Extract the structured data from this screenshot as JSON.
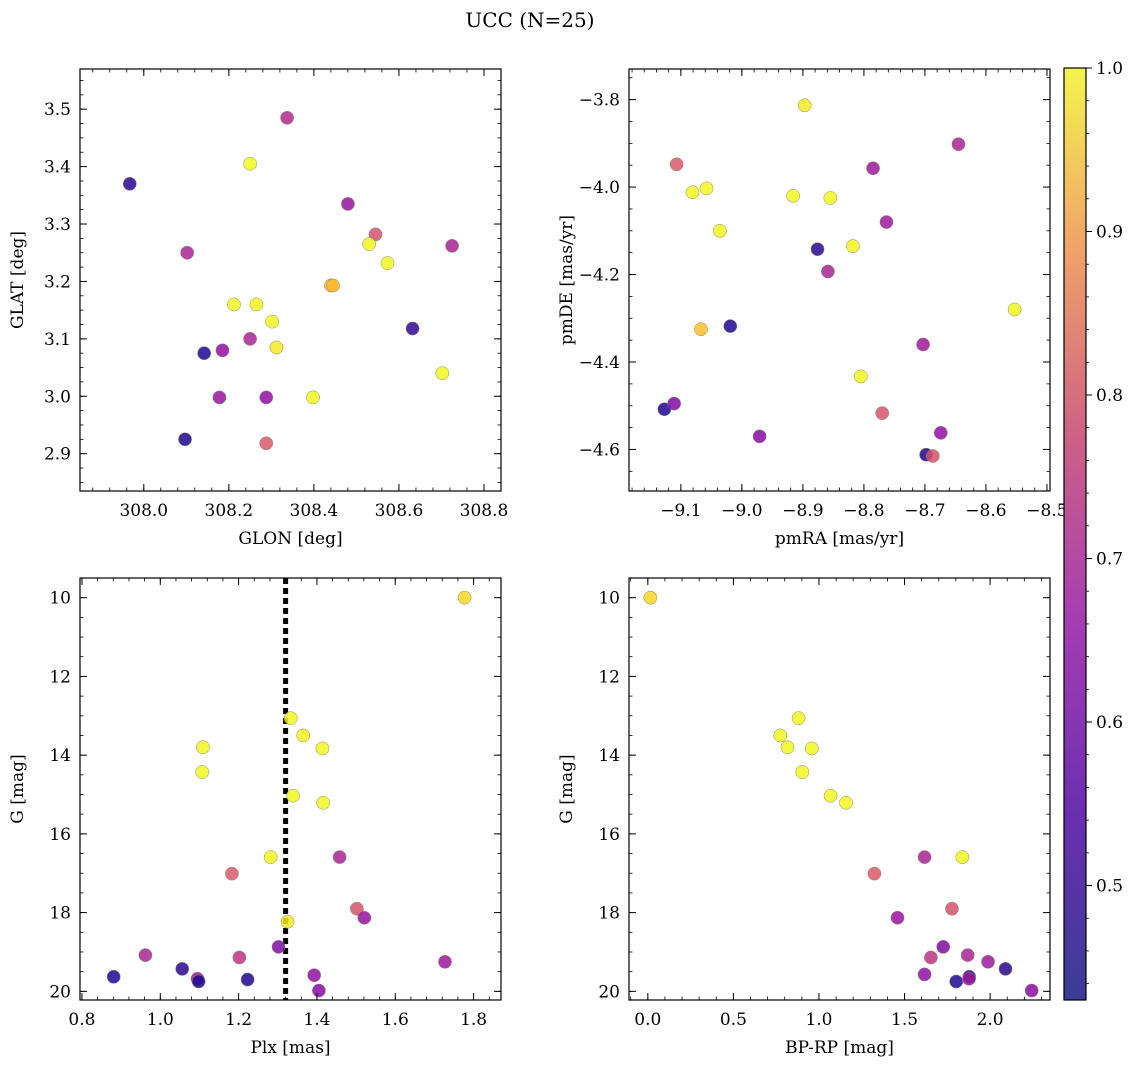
{
  "figure": {
    "title": "UCC (N=25)",
    "colorbar": {
      "min": 0.43,
      "max": 1.0,
      "ticks": [
        "0.5",
        "0.6",
        "0.7",
        "0.8",
        "0.9",
        "1.0"
      ],
      "colormap": "plasma"
    }
  },
  "chart_data": [
    {
      "type": "scatter",
      "xlabel": "GLON [deg]",
      "ylabel": "GLAT [deg]",
      "xlim": [
        307.85,
        308.84
      ],
      "ylim": [
        2.835,
        3.57
      ],
      "xticks": [
        308.0,
        308.2,
        308.4,
        308.6,
        308.8
      ],
      "xtick_labels": [
        "308.0",
        "308.2",
        "308.4",
        "308.6",
        "308.8"
      ],
      "yticks": [
        2.9,
        3.0,
        3.1,
        3.2,
        3.3,
        3.4,
        3.5
      ],
      "ytick_labels": [
        "2.9",
        "3.0",
        "3.1",
        "3.2",
        "3.3",
        "3.4",
        "3.5"
      ],
      "points": [
        {
          "x": 307.967,
          "y": 3.37,
          "c": 0.46
        },
        {
          "x": 308.102,
          "y": 3.25,
          "c": 0.62
        },
        {
          "x": 308.25,
          "y": 3.405,
          "c": 1.0
        },
        {
          "x": 308.337,
          "y": 3.485,
          "c": 0.63
        },
        {
          "x": 308.48,
          "y": 3.335,
          "c": 0.59
        },
        {
          "x": 308.545,
          "y": 3.282,
          "c": 0.7
        },
        {
          "x": 308.53,
          "y": 3.265,
          "c": 0.98
        },
        {
          "x": 308.573,
          "y": 3.232,
          "c": 0.99
        },
        {
          "x": 308.725,
          "y": 3.262,
          "c": 0.62
        },
        {
          "x": 308.44,
          "y": 3.193,
          "c": 0.86
        },
        {
          "x": 308.445,
          "y": 3.193,
          "c": 0.85
        },
        {
          "x": 308.212,
          "y": 3.16,
          "c": 0.99
        },
        {
          "x": 308.265,
          "y": 3.16,
          "c": 0.99
        },
        {
          "x": 308.302,
          "y": 3.13,
          "c": 0.99
        },
        {
          "x": 308.25,
          "y": 3.1,
          "c": 0.62
        },
        {
          "x": 308.312,
          "y": 3.085,
          "c": 0.93
        },
        {
          "x": 308.185,
          "y": 3.08,
          "c": 0.58
        },
        {
          "x": 308.142,
          "y": 3.075,
          "c": 0.45
        },
        {
          "x": 308.632,
          "y": 3.118,
          "c": 0.47
        },
        {
          "x": 308.178,
          "y": 2.998,
          "c": 0.59
        },
        {
          "x": 308.288,
          "y": 2.998,
          "c": 0.58
        },
        {
          "x": 308.398,
          "y": 2.998,
          "c": 0.99
        },
        {
          "x": 308.702,
          "y": 3.04,
          "c": 0.99
        },
        {
          "x": 308.097,
          "y": 2.925,
          "c": 0.45
        },
        {
          "x": 308.288,
          "y": 2.918,
          "c": 0.71
        }
      ]
    },
    {
      "type": "scatter",
      "xlabel": "pmRA [mas/yr]",
      "ylabel": "pmDE [mas/yr]",
      "xlim": [
        -9.185,
        -8.495
      ],
      "ylim": [
        -4.695,
        -3.73
      ],
      "xticks": [
        -9.1,
        -9.0,
        -8.9,
        -8.8,
        -8.7,
        -8.6,
        -8.5
      ],
      "xtick_labels": [
        "−9.1",
        "−9.0",
        "−8.9",
        "−8.8",
        "−8.7",
        "−8.6",
        "−8.5"
      ],
      "yticks": [
        -4.6,
        -4.4,
        -4.2,
        -4.0,
        -3.8
      ],
      "ytick_labels": [
        "−4.6",
        "−4.4",
        "−4.2",
        "−4.0",
        "−3.8"
      ],
      "points": [
        {
          "x": -8.897,
          "y": -3.813,
          "c": 0.93
        },
        {
          "x": -9.107,
          "y": -3.948,
          "c": 0.71
        },
        {
          "x": -9.081,
          "y": -4.012,
          "c": 0.99
        },
        {
          "x": -9.058,
          "y": -4.003,
          "c": 0.99
        },
        {
          "x": -8.916,
          "y": -4.02,
          "c": 0.99
        },
        {
          "x": -8.855,
          "y": -4.025,
          "c": 0.99
        },
        {
          "x": -8.785,
          "y": -3.957,
          "c": 0.6
        },
        {
          "x": -8.645,
          "y": -3.902,
          "c": 0.62
        },
        {
          "x": -8.763,
          "y": -4.08,
          "c": 0.6
        },
        {
          "x": -9.036,
          "y": -4.1,
          "c": 0.99
        },
        {
          "x": -8.818,
          "y": -4.135,
          "c": 0.98
        },
        {
          "x": -8.876,
          "y": -4.142,
          "c": 0.46
        },
        {
          "x": -8.859,
          "y": -4.193,
          "c": 0.62
        },
        {
          "x": -8.553,
          "y": -4.28,
          "c": 0.99
        },
        {
          "x": -9.067,
          "y": -4.325,
          "c": 0.86
        },
        {
          "x": -9.019,
          "y": -4.318,
          "c": 0.45
        },
        {
          "x": -8.703,
          "y": -4.36,
          "c": 0.6
        },
        {
          "x": -8.805,
          "y": -4.433,
          "c": 0.99
        },
        {
          "x": -9.127,
          "y": -4.508,
          "c": 0.45
        },
        {
          "x": -9.111,
          "y": -4.495,
          "c": 0.56
        },
        {
          "x": -8.77,
          "y": -4.517,
          "c": 0.7
        },
        {
          "x": -8.971,
          "y": -4.57,
          "c": 0.57
        },
        {
          "x": -8.674,
          "y": -4.562,
          "c": 0.58
        },
        {
          "x": -8.698,
          "y": -4.612,
          "c": 0.45
        },
        {
          "x": -8.687,
          "y": -4.615,
          "c": 0.7
        }
      ]
    },
    {
      "type": "scatter",
      "xlabel": "Plx [mas]",
      "ylabel": "G [mag]",
      "xlim": [
        0.795,
        1.87
      ],
      "ylim": [
        20.22,
        9.5
      ],
      "y_inverted": true,
      "vline_x": 1.32,
      "xticks": [
        0.8,
        1.0,
        1.2,
        1.4,
        1.6,
        1.8
      ],
      "xtick_labels": [
        "0.8",
        "1.0",
        "1.2",
        "1.4",
        "1.6",
        "1.8"
      ],
      "yticks": [
        10,
        12,
        14,
        16,
        18,
        20
      ],
      "ytick_labels": [
        "10",
        "12",
        "14",
        "16",
        "18",
        "20"
      ],
      "points": [
        {
          "x": 1.777,
          "y": 10.0,
          "c": 0.9
        },
        {
          "x": 1.333,
          "y": 13.06,
          "c": 0.99
        },
        {
          "x": 1.365,
          "y": 13.5,
          "c": 0.99
        },
        {
          "x": 1.109,
          "y": 13.8,
          "c": 0.99
        },
        {
          "x": 1.414,
          "y": 13.83,
          "c": 0.99
        },
        {
          "x": 1.107,
          "y": 14.43,
          "c": 0.99
        },
        {
          "x": 1.339,
          "y": 15.03,
          "c": 0.99
        },
        {
          "x": 1.416,
          "y": 15.21,
          "c": 0.99
        },
        {
          "x": 1.282,
          "y": 16.59,
          "c": 0.99
        },
        {
          "x": 1.458,
          "y": 16.59,
          "c": 0.62
        },
        {
          "x": 1.183,
          "y": 17.01,
          "c": 0.71
        },
        {
          "x": 1.502,
          "y": 17.9,
          "c": 0.7
        },
        {
          "x": 1.521,
          "y": 18.13,
          "c": 0.59
        },
        {
          "x": 1.325,
          "y": 18.23,
          "c": 0.93
        },
        {
          "x": 1.302,
          "y": 18.87,
          "c": 0.56
        },
        {
          "x": 0.962,
          "y": 19.08,
          "c": 0.62
        },
        {
          "x": 1.202,
          "y": 19.14,
          "c": 0.65
        },
        {
          "x": 1.727,
          "y": 19.25,
          "c": 0.6
        },
        {
          "x": 1.056,
          "y": 19.43,
          "c": 0.46
        },
        {
          "x": 0.881,
          "y": 19.63,
          "c": 0.45
        },
        {
          "x": 1.095,
          "y": 19.68,
          "c": 0.6
        },
        {
          "x": 1.098,
          "y": 19.75,
          "c": 0.45
        },
        {
          "x": 1.223,
          "y": 19.7,
          "c": 0.45
        },
        {
          "x": 1.393,
          "y": 19.59,
          "c": 0.58
        },
        {
          "x": 1.405,
          "y": 19.98,
          "c": 0.57
        }
      ]
    },
    {
      "type": "scatter",
      "xlabel": "BP-RP [mag]",
      "ylabel": "G [mag]",
      "xlim": [
        -0.11,
        2.35
      ],
      "ylim": [
        20.22,
        9.5
      ],
      "y_inverted": true,
      "xticks": [
        0.0,
        0.5,
        1.0,
        1.5,
        2.0
      ],
      "xtick_labels": [
        "0.0",
        "0.5",
        "1.0",
        "1.5",
        "2.0"
      ],
      "yticks": [
        10,
        12,
        14,
        16,
        18,
        20
      ],
      "ytick_labels": [
        "10",
        "12",
        "14",
        "16",
        "18",
        "20"
      ],
      "points": [
        {
          "x": 0.015,
          "y": 10.0,
          "c": 0.9
        },
        {
          "x": 0.881,
          "y": 13.06,
          "c": 0.99
        },
        {
          "x": 0.774,
          "y": 13.5,
          "c": 0.99
        },
        {
          "x": 0.816,
          "y": 13.8,
          "c": 0.99
        },
        {
          "x": 0.958,
          "y": 13.83,
          "c": 0.99
        },
        {
          "x": 0.903,
          "y": 14.43,
          "c": 0.99
        },
        {
          "x": 1.068,
          "y": 15.03,
          "c": 0.99
        },
        {
          "x": 1.158,
          "y": 15.21,
          "c": 0.99
        },
        {
          "x": 1.838,
          "y": 16.59,
          "c": 0.99
        },
        {
          "x": 1.617,
          "y": 16.59,
          "c": 0.62
        },
        {
          "x": 1.324,
          "y": 17.01,
          "c": 0.71
        },
        {
          "x": 1.777,
          "y": 17.9,
          "c": 0.7
        },
        {
          "x": 1.459,
          "y": 18.13,
          "c": 0.59
        },
        {
          "x": 1.726,
          "y": 18.87,
          "c": 0.56
        },
        {
          "x": 1.869,
          "y": 19.08,
          "c": 0.62
        },
        {
          "x": 1.654,
          "y": 19.14,
          "c": 0.65
        },
        {
          "x": 1.988,
          "y": 19.25,
          "c": 0.6
        },
        {
          "x": 2.09,
          "y": 19.43,
          "c": 0.46
        },
        {
          "x": 1.617,
          "y": 19.57,
          "c": 0.58
        },
        {
          "x": 1.878,
          "y": 19.63,
          "c": 0.45
        },
        {
          "x": 1.877,
          "y": 19.68,
          "c": 0.6
        },
        {
          "x": 1.802,
          "y": 19.75,
          "c": 0.45
        },
        {
          "x": 2.243,
          "y": 19.98,
          "c": 0.57
        }
      ]
    }
  ]
}
